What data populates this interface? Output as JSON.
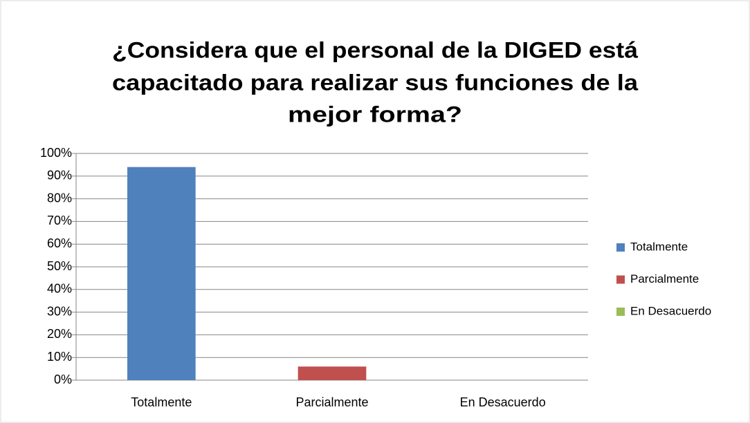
{
  "chart_data": {
    "type": "bar",
    "title": [
      "¿Considera que el personal de la DIGED está",
      "capacitado para realizar sus funciones de la",
      "mejor forma?"
    ],
    "categories": [
      "Totalmente",
      "Parcialmente",
      "En Desacuerdo"
    ],
    "values": [
      94,
      6,
      0
    ],
    "colors": [
      "#4f81bd",
      "#c0504d",
      "#9bbb59"
    ],
    "ylim": [
      0,
      100
    ],
    "yticks": [
      {
        "value": 0,
        "label": "0%"
      },
      {
        "value": 10,
        "label": "10%"
      },
      {
        "value": 20,
        "label": "20%"
      },
      {
        "value": 30,
        "label": "30%"
      },
      {
        "value": 40,
        "label": "40%"
      },
      {
        "value": 50,
        "label": "50%"
      },
      {
        "value": 60,
        "label": "60%"
      },
      {
        "value": 70,
        "label": "70%"
      },
      {
        "value": 80,
        "label": "80%"
      },
      {
        "value": 90,
        "label": "90%"
      },
      {
        "value": 100,
        "label": "100%"
      }
    ],
    "grid": true,
    "legend": "right"
  }
}
